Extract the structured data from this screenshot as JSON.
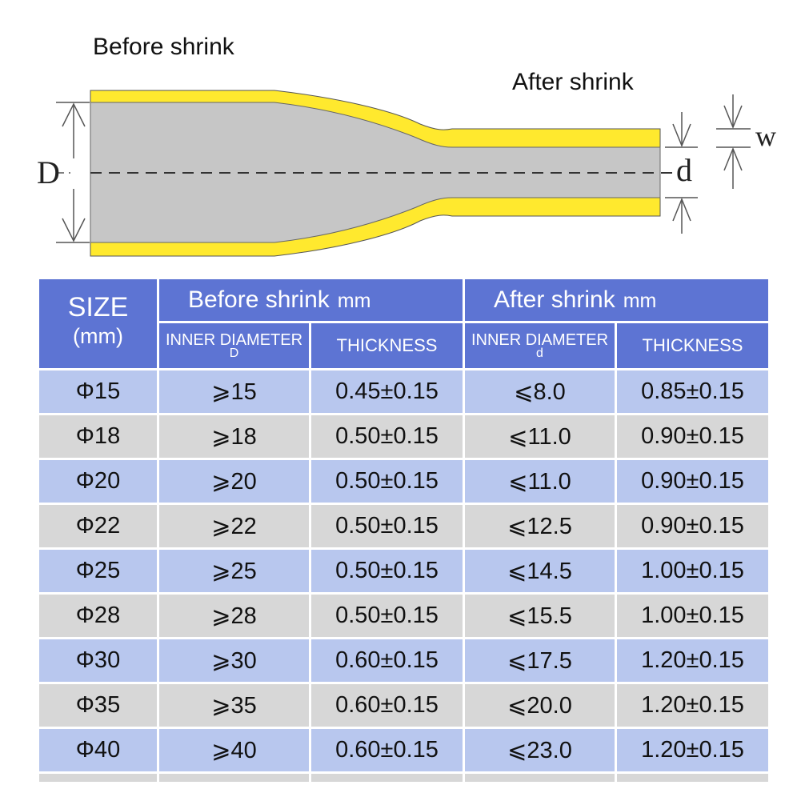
{
  "diagram": {
    "before_label": "Before  shrink",
    "after_label": "After shrink",
    "dim_D": "D",
    "dim_d": "d",
    "dim_w": "w",
    "colors": {
      "sleeve_wall": "#ffe92e",
      "sleeve_core": "#c6c6c6",
      "outline": "#444444"
    }
  },
  "table": {
    "size_header": "SIZE",
    "size_unit": "(mm)",
    "before_group": "Before  shrink",
    "after_group": "After shrink",
    "group_unit": "mm",
    "inner_diameter": "INNER DIAMETER",
    "before_inner_symbol": "D",
    "after_inner_symbol": "d",
    "thickness": "THICKNESS",
    "rows": [
      {
        "size": "Φ15",
        "before_id": "⩾15",
        "before_thk": "0.45±0.15",
        "after_id": "⩽8.0",
        "after_thk": "0.85±0.15"
      },
      {
        "size": "Φ18",
        "before_id": "⩾18",
        "before_thk": "0.50±0.15",
        "after_id": "⩽11.0",
        "after_thk": "0.90±0.15"
      },
      {
        "size": "Φ20",
        "before_id": "⩾20",
        "before_thk": "0.50±0.15",
        "after_id": "⩽11.0",
        "after_thk": "0.90±0.15"
      },
      {
        "size": "Φ22",
        "before_id": "⩾22",
        "before_thk": "0.50±0.15",
        "after_id": "⩽12.5",
        "after_thk": "0.90±0.15"
      },
      {
        "size": "Φ25",
        "before_id": "⩾25",
        "before_thk": "0.50±0.15",
        "after_id": "⩽14.5",
        "after_thk": "1.00±0.15"
      },
      {
        "size": "Φ28",
        "before_id": "⩾28",
        "before_thk": "0.50±0.15",
        "after_id": "⩽15.5",
        "after_thk": "1.00±0.15"
      },
      {
        "size": "Φ30",
        "before_id": "⩾30",
        "before_thk": "0.60±0.15",
        "after_id": "⩽17.5",
        "after_thk": "1.20±0.15"
      },
      {
        "size": "Φ35",
        "before_id": "⩾35",
        "before_thk": "0.60±0.15",
        "after_id": "⩽20.0",
        "after_thk": "1.20±0.15"
      },
      {
        "size": "Φ40",
        "before_id": "⩾40",
        "before_thk": "0.60±0.15",
        "after_id": "⩽23.0",
        "after_thk": "1.20±0.15"
      }
    ]
  }
}
